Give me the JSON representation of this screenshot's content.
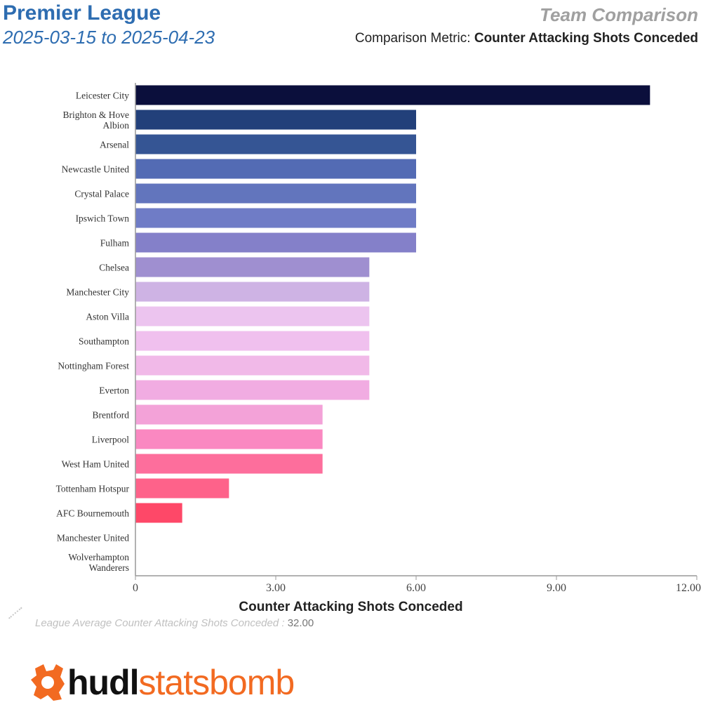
{
  "header": {
    "league": "Premier League",
    "date_range": "2025-03-15 to 2025-04-23",
    "view_title": "Team Comparison",
    "metric_prefix": "Comparison Metric:",
    "metric_name": "Counter Attacking Shots Conceded"
  },
  "footer": {
    "average_label": "League Average Counter Attacking Shots Conceded :",
    "average_value": "32.00",
    "logo_bold": "hudl",
    "logo_light": "statsbomb"
  },
  "colors": {
    "title": "#2e6db1",
    "logo_accent": "#f26a21"
  },
  "chart_data": {
    "type": "bar",
    "orientation": "horizontal",
    "categories": [
      "Leicester City",
      "Brighton & Hove Albion",
      "Arsenal",
      "Newcastle United",
      "Crystal Palace",
      "Ipswich Town",
      "Fulham",
      "Chelsea",
      "Manchester City",
      "Aston Villa",
      "Southampton",
      "Nottingham Forest",
      "Everton",
      "Brentford",
      "Liverpool",
      "West Ham United",
      "Tottenham Hotspur",
      "AFC Bournemouth",
      "Manchester United",
      "Wolverhampton Wanderers"
    ],
    "values": [
      11,
      6,
      6,
      6,
      6,
      6,
      6,
      5,
      5,
      5,
      5,
      5,
      5,
      4,
      4,
      4,
      2,
      1,
      0,
      0
    ],
    "colors": [
      "#0b0f3c",
      "#22407a",
      "#355594",
      "#536bb4",
      "#6275bd",
      "#6f7cc6",
      "#8480c9",
      "#9f8fd0",
      "#ceb3e4",
      "#ecc4ef",
      "#f0c0ee",
      "#f1b9e8",
      "#f1ace2",
      "#f3a2d8",
      "#fa88c1",
      "#fd6e9c",
      "#fe628a",
      "#fe4868",
      "#ffffff",
      "#ffffff"
    ],
    "xlabel": "Counter Attacking Shots Conceded",
    "xlim": [
      0,
      12
    ],
    "xticks": [
      0,
      3,
      6,
      9,
      12
    ],
    "xtick_labels": [
      "0",
      "3.00",
      "6.00",
      "9.00",
      "12.00"
    ],
    "grid": false
  }
}
